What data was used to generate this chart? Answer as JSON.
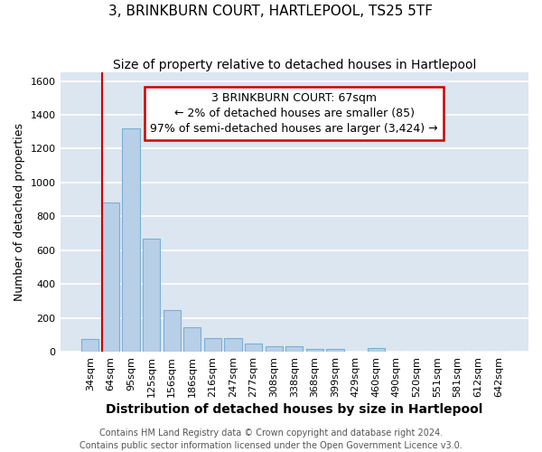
{
  "title": "3, BRINKBURN COURT, HARTLEPOOL, TS25 5TF",
  "subtitle": "Size of property relative to detached houses in Hartlepool",
  "xlabel": "Distribution of detached houses by size in Hartlepool",
  "ylabel": "Number of detached properties",
  "categories": [
    "34sqm",
    "64sqm",
    "95sqm",
    "125sqm",
    "156sqm",
    "186sqm",
    "216sqm",
    "247sqm",
    "277sqm",
    "308sqm",
    "338sqm",
    "368sqm",
    "399sqm",
    "429sqm",
    "460sqm",
    "490sqm",
    "520sqm",
    "551sqm",
    "581sqm",
    "612sqm",
    "642sqm"
  ],
  "values": [
    75,
    880,
    1320,
    670,
    245,
    145,
    80,
    80,
    50,
    30,
    30,
    15,
    15,
    0,
    20,
    0,
    0,
    0,
    0,
    0,
    0
  ],
  "bar_color": "#b8cfe8",
  "bar_edge_color": "#7aafd4",
  "highlight_bar_index": 1,
  "highlight_line_color": "#cc0000",
  "annotation_line1": "3 BRINKBURN COURT: 67sqm",
  "annotation_line2": "← 2% of detached houses are smaller (85)",
  "annotation_line3": "97% of semi-detached houses are larger (3,424) →",
  "annotation_box_color": "#cc0000",
  "ylim": [
    0,
    1650
  ],
  "yticks": [
    0,
    200,
    400,
    600,
    800,
    1000,
    1200,
    1400,
    1600
  ],
  "plot_bg_color": "#dce6f0",
  "grid_color": "#ffffff",
  "fig_bg_color": "#ffffff",
  "footer_line1": "Contains HM Land Registry data © Crown copyright and database right 2024.",
  "footer_line2": "Contains public sector information licensed under the Open Government Licence v3.0.",
  "title_fontsize": 11,
  "subtitle_fontsize": 10,
  "xlabel_fontsize": 10,
  "ylabel_fontsize": 9,
  "tick_fontsize": 8,
  "annotation_fontsize": 9,
  "footer_fontsize": 7
}
